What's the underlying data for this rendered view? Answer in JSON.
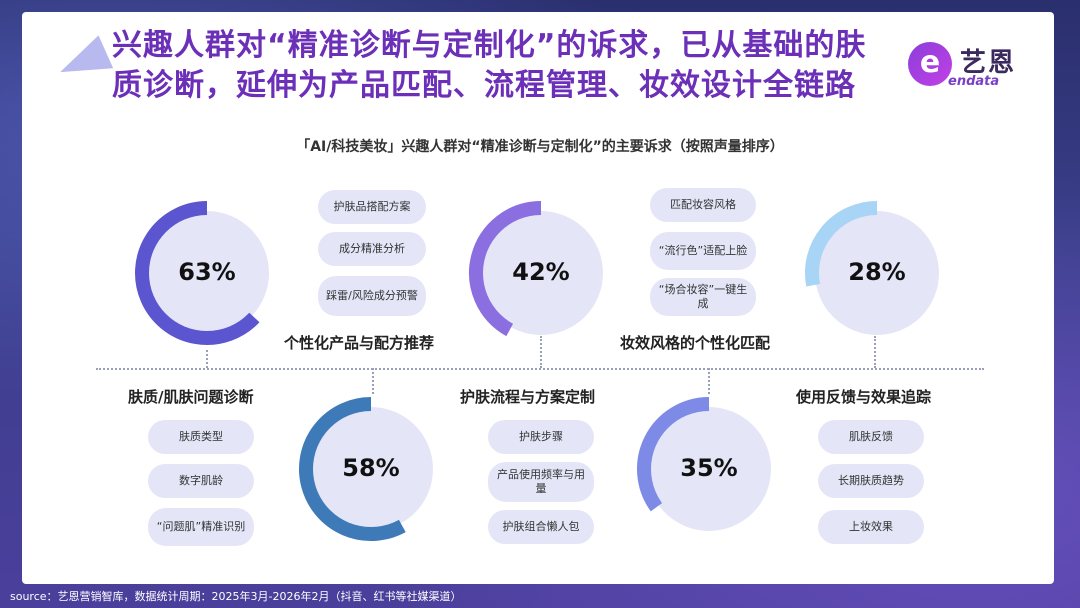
{
  "title_line1": "兴趣人群对“精准诊断与定制化”的诉求，已从基础的肤",
  "title_line2": "质诊断，延伸为产品匹配、流程管理、妆效设计全链路",
  "logo": {
    "cn": "艺恩",
    "en": "endata",
    "letter": "e"
  },
  "source": "source：艺恩营销智库，数据统计周期：2025年3月-2026年2月（抖音、红书等社媒渠道）",
  "colors": {
    "bg_ring": "#e4e6f8",
    "ring_1": "#5b55cf",
    "ring_2": "#3e7ab8",
    "ring_3": "#8b6fe0",
    "ring_4": "#7d8ae6",
    "ring_5": "#a8d4f5",
    "title": "#6b2fb8"
  },
  "chart_data": {
    "type": "donut",
    "title": "「AI/科技美妆」兴趣人群对“精准诊断与定制化”的主要诉求（按照声量排序）",
    "series": [
      {
        "category": "个性化产品与配方推荐",
        "value": 63,
        "label": "63%",
        "items": [
          "护肤品搭配方案",
          "成分精准分析",
          "踩雷/风险成分预警"
        ]
      },
      {
        "category": "肤质/肌肤问题诊断",
        "value": 58,
        "label": "58%",
        "items": [
          "肤质类型",
          "数字肌龄",
          "“问题肌”精准识别"
        ]
      },
      {
        "category": "妆效风格的个性化匹配",
        "value": 42,
        "label": "42%",
        "items": [
          "匹配妆容风格",
          "“流行色”适配上脸",
          "“场合妆容”一键生成"
        ]
      },
      {
        "category": "护肤流程与方案定制",
        "value": 35,
        "label": "35%",
        "items": [
          "护肤步骤",
          "产品使用频率与用量",
          "护肤组合懒人包"
        ]
      },
      {
        "category": "使用反馈与效果追踪",
        "value": 28,
        "label": "28%",
        "items": [
          "肌肤反馈",
          "长期肤质趋势",
          "上妆效果"
        ]
      }
    ]
  }
}
